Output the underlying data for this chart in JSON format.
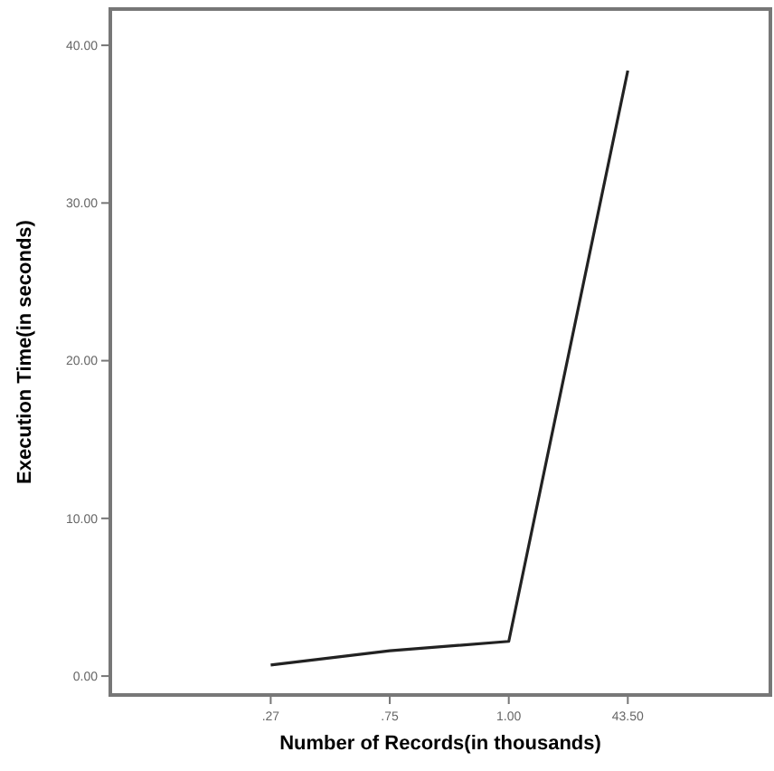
{
  "chart_data": {
    "type": "line",
    "xlabel": "Number of Records(in thousands)",
    "ylabel": "Execution Time(in seconds)",
    "categories": [
      ".27",
      ".75",
      "1.00",
      "43.50"
    ],
    "series": [
      {
        "color": "#222222",
        "values": [
          0.7,
          1.6,
          2.2,
          38.4
        ]
      }
    ],
    "ylim": [
      -1.2,
      42.3
    ],
    "yticks": [
      {
        "value": 0,
        "label": "0.00"
      },
      {
        "value": 10,
        "label": "10.00"
      },
      {
        "value": 20,
        "label": "20.00"
      },
      {
        "value": 30,
        "label": "30.00"
      },
      {
        "value": 40,
        "label": "40.00"
      }
    ],
    "grid": false,
    "marker": "none",
    "line_style": "solid"
  }
}
